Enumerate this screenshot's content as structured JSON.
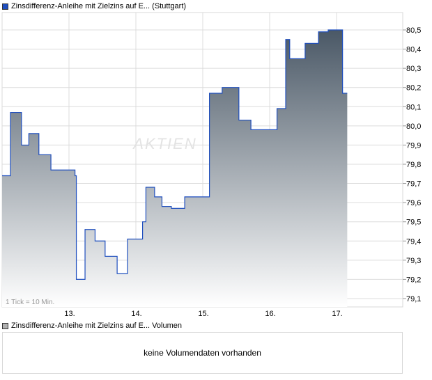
{
  "price_legend": {
    "label": "Zinsdifferenz-Anleihe mit Zielzins auf E... (Stuttgart)",
    "color": "#1f4fbf"
  },
  "volume_legend": {
    "label": "Zinsdifferenz-Anleihe mit Zielzins auf E... Volumen",
    "color": "#b0b0b0"
  },
  "volume_message": "keine Volumendaten vorhanden",
  "watermark": "AKTIEN",
  "chart_data": {
    "type": "area",
    "title": "",
    "tick_note": "1 Tick = 10 Min.",
    "x_ticks": [
      "13.",
      "14.",
      "15.",
      "16.",
      "17."
    ],
    "y_ticks": [
      "80,5",
      "80,4",
      "80,3",
      "80,2",
      "80,1",
      "80,0",
      "79,9",
      "79,8",
      "79,7",
      "79,6",
      "79,5",
      "79,4",
      "79,3",
      "79,2",
      "79,1"
    ],
    "xlim": [
      12.0,
      18.0
    ],
    "ylim": [
      79.05,
      80.59
    ],
    "grid": true,
    "line_color": "#1f4fbf",
    "fill_top": "#4a5866",
    "fill_bottom": "#ffffff",
    "x": [
      12.0,
      12.09,
      12.125,
      12.29,
      12.4,
      12.55,
      12.73,
      13.09,
      13.11,
      13.24,
      13.39,
      13.54,
      13.72,
      13.875,
      14.1,
      14.15,
      14.28,
      14.39,
      14.53,
      14.73,
      15.1,
      15.29,
      15.54,
      15.72,
      16.11,
      16.24,
      16.3,
      16.53,
      16.73,
      16.875,
      17.09,
      17.16
    ],
    "y": [
      79.74,
      79.74,
      80.07,
      79.9,
      79.96,
      79.85,
      79.77,
      79.74,
      79.2,
      79.46,
      79.4,
      79.32,
      79.23,
      79.41,
      79.5,
      79.68,
      79.63,
      79.58,
      79.57,
      79.63,
      80.17,
      80.2,
      80.03,
      79.98,
      80.09,
      80.45,
      80.35,
      80.43,
      80.49,
      80.5,
      80.17,
      80.17
    ]
  }
}
